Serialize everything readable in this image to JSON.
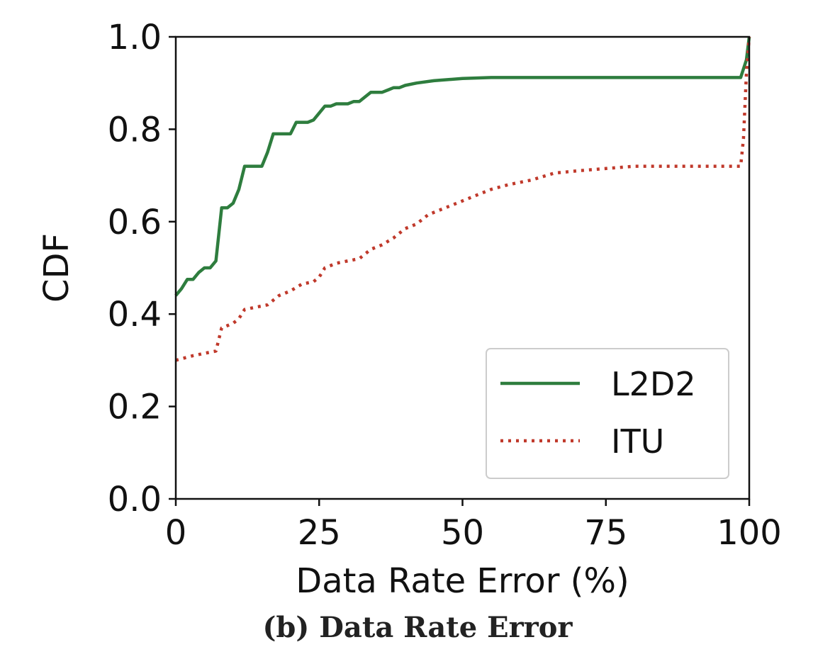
{
  "chart_data": {
    "type": "line",
    "title": "",
    "xlabel": "Data Rate Error (%)",
    "ylabel": "CDF",
    "xlim": [
      0,
      100
    ],
    "ylim": [
      0.0,
      1.0
    ],
    "xticks": [
      "0",
      "25",
      "50",
      "75",
      "100"
    ],
    "yticks": [
      "0.0",
      "0.2",
      "0.4",
      "0.6",
      "0.8",
      "1.0"
    ],
    "xtick_values": [
      0,
      25,
      50,
      75,
      100
    ],
    "ytick_values": [
      0.0,
      0.2,
      0.4,
      0.6,
      0.8,
      1.0
    ],
    "grid": false,
    "legend_position": "lower-right",
    "series": [
      {
        "name": "L2D2",
        "style": "solid",
        "color": "#2e7d3e",
        "x": [
          0,
          1,
          2,
          3,
          4,
          5,
          6,
          7,
          8,
          9,
          10,
          11,
          12,
          13,
          14,
          15,
          16,
          17,
          18,
          19,
          20,
          21,
          22,
          23,
          24,
          25,
          26,
          27,
          28,
          29,
          30,
          31,
          32,
          33,
          34,
          35,
          36,
          37,
          38,
          39,
          40,
          42,
          45,
          50,
          55,
          60,
          70,
          80,
          90,
          98.5,
          99.5,
          100
        ],
        "y": [
          0.44,
          0.455,
          0.475,
          0.475,
          0.49,
          0.5,
          0.5,
          0.515,
          0.63,
          0.63,
          0.64,
          0.67,
          0.72,
          0.72,
          0.72,
          0.72,
          0.75,
          0.79,
          0.79,
          0.79,
          0.79,
          0.815,
          0.815,
          0.815,
          0.82,
          0.835,
          0.85,
          0.85,
          0.855,
          0.855,
          0.855,
          0.86,
          0.86,
          0.87,
          0.88,
          0.88,
          0.88,
          0.885,
          0.89,
          0.89,
          0.895,
          0.9,
          0.905,
          0.91,
          0.912,
          0.912,
          0.912,
          0.912,
          0.912,
          0.912,
          0.95,
          1.0
        ]
      },
      {
        "name": "ITU",
        "style": "dotted",
        "color": "#c0392b",
        "x": [
          0,
          3,
          5,
          7,
          8,
          9,
          10,
          11,
          12,
          14,
          16,
          18,
          20,
          22,
          24,
          25,
          26,
          28,
          30,
          32,
          34,
          36,
          38,
          40,
          42,
          44,
          46,
          48,
          50,
          52,
          55,
          58,
          62,
          66,
          70,
          75,
          80,
          90,
          98.5,
          99,
          99.5,
          100
        ],
        "y": [
          0.3,
          0.31,
          0.315,
          0.32,
          0.37,
          0.375,
          0.38,
          0.39,
          0.41,
          0.415,
          0.42,
          0.44,
          0.45,
          0.465,
          0.47,
          0.48,
          0.5,
          0.51,
          0.515,
          0.52,
          0.54,
          0.55,
          0.565,
          0.585,
          0.595,
          0.615,
          0.625,
          0.635,
          0.645,
          0.655,
          0.67,
          0.68,
          0.69,
          0.705,
          0.71,
          0.715,
          0.72,
          0.72,
          0.72,
          0.78,
          0.92,
          1.0
        ]
      }
    ]
  },
  "caption": "(b) Data Rate Error"
}
